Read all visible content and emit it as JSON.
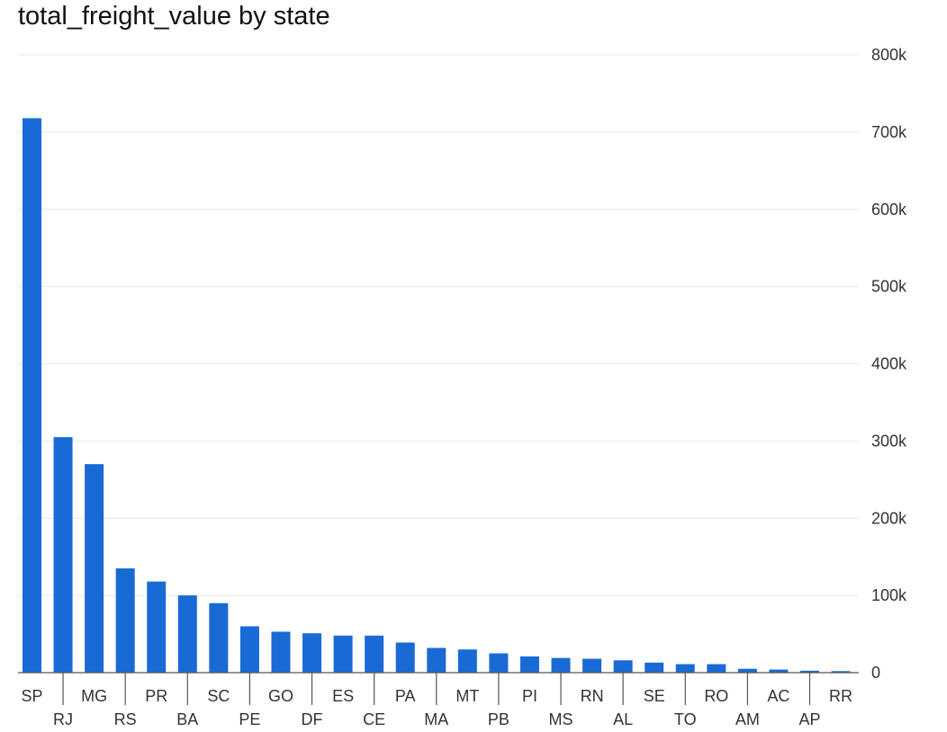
{
  "chart_data": {
    "type": "bar",
    "title": "total_freight_value by state",
    "xlabel": "",
    "ylabel": "",
    "categories": [
      "SP",
      "RJ",
      "MG",
      "RS",
      "PR",
      "BA",
      "SC",
      "PE",
      "GO",
      "DF",
      "ES",
      "CE",
      "PA",
      "MA",
      "MT",
      "PB",
      "PI",
      "MS",
      "RN",
      "AL",
      "SE",
      "TO",
      "RO",
      "AM",
      "AC",
      "AP",
      "RR"
    ],
    "values": [
      718000,
      305000,
      270000,
      135000,
      118000,
      100000,
      90000,
      60000,
      53000,
      51000,
      48000,
      48000,
      39000,
      32000,
      30000,
      25000,
      21000,
      19000,
      18000,
      16000,
      13000,
      11000,
      11000,
      5000,
      4000,
      2500,
      2000
    ],
    "ylim": [
      0,
      800000
    ],
    "yticks": [
      0,
      100000,
      200000,
      300000,
      400000,
      500000,
      600000,
      700000,
      800000
    ],
    "ytick_labels": [
      "0",
      "100k",
      "200k",
      "300k",
      "400k",
      "500k",
      "600k",
      "700k",
      "800k"
    ],
    "y_axis_side": "right",
    "grid": true,
    "bar_color": "#1a6ad6"
  }
}
